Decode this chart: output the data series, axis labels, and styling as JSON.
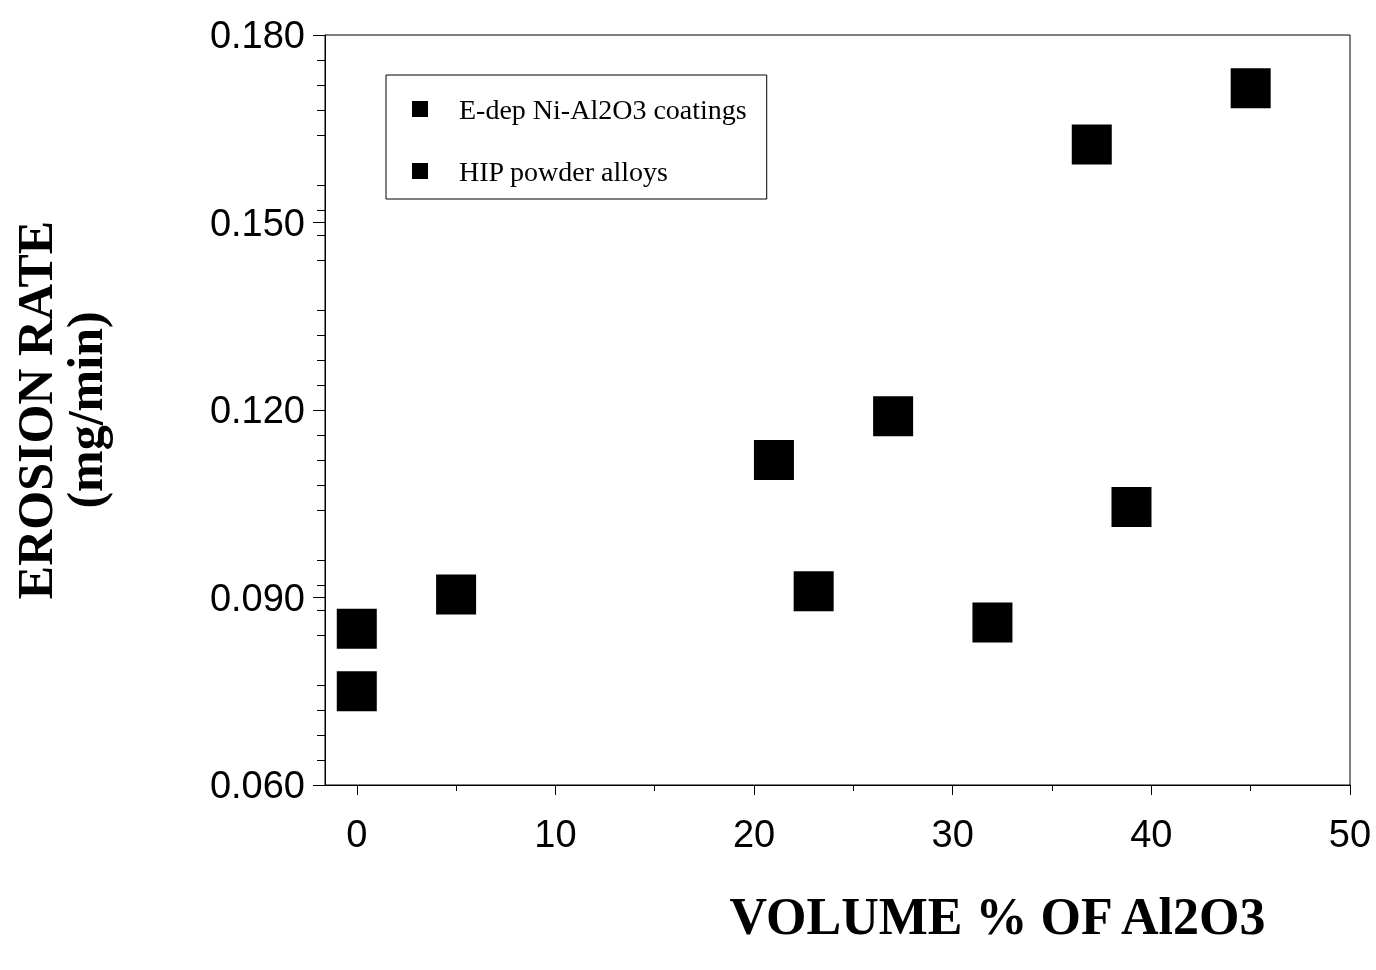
{
  "chart_data": {
    "type": "scatter",
    "xlabel": "VOLUME % OF Al2O3",
    "ylabel": "EROSION RATE\n(mg/min)",
    "series": [
      {
        "name": "E-dep Ni-Al2O3 coatings",
        "color": "#000000",
        "x": [
          0,
          5,
          21,
          27,
          37,
          45
        ],
        "values": [
          0.085,
          0.0905,
          0.112,
          0.119,
          0.1625,
          0.1715
        ]
      },
      {
        "name": "HIP powder alloys",
        "color": "#000000",
        "x": [
          0,
          23,
          32,
          39
        ],
        "values": [
          0.075,
          0.091,
          0.086,
          0.1045
        ]
      }
    ],
    "xlim": [
      -1.6,
      50
    ],
    "xticks": [
      0,
      10,
      20,
      30,
      40,
      50
    ],
    "ylim": [
      0.06,
      0.18
    ],
    "yticks": [
      {
        "value": 0.06,
        "label": "0.060"
      },
      {
        "value": 0.09,
        "label": "0.090"
      },
      {
        "value": 0.12,
        "label": "0.120"
      },
      {
        "value": 0.15,
        "label": "0.150"
      },
      {
        "value": 0.18,
        "label": "0.180"
      }
    ],
    "grid": false,
    "legend": "top left",
    "marker": "square"
  }
}
